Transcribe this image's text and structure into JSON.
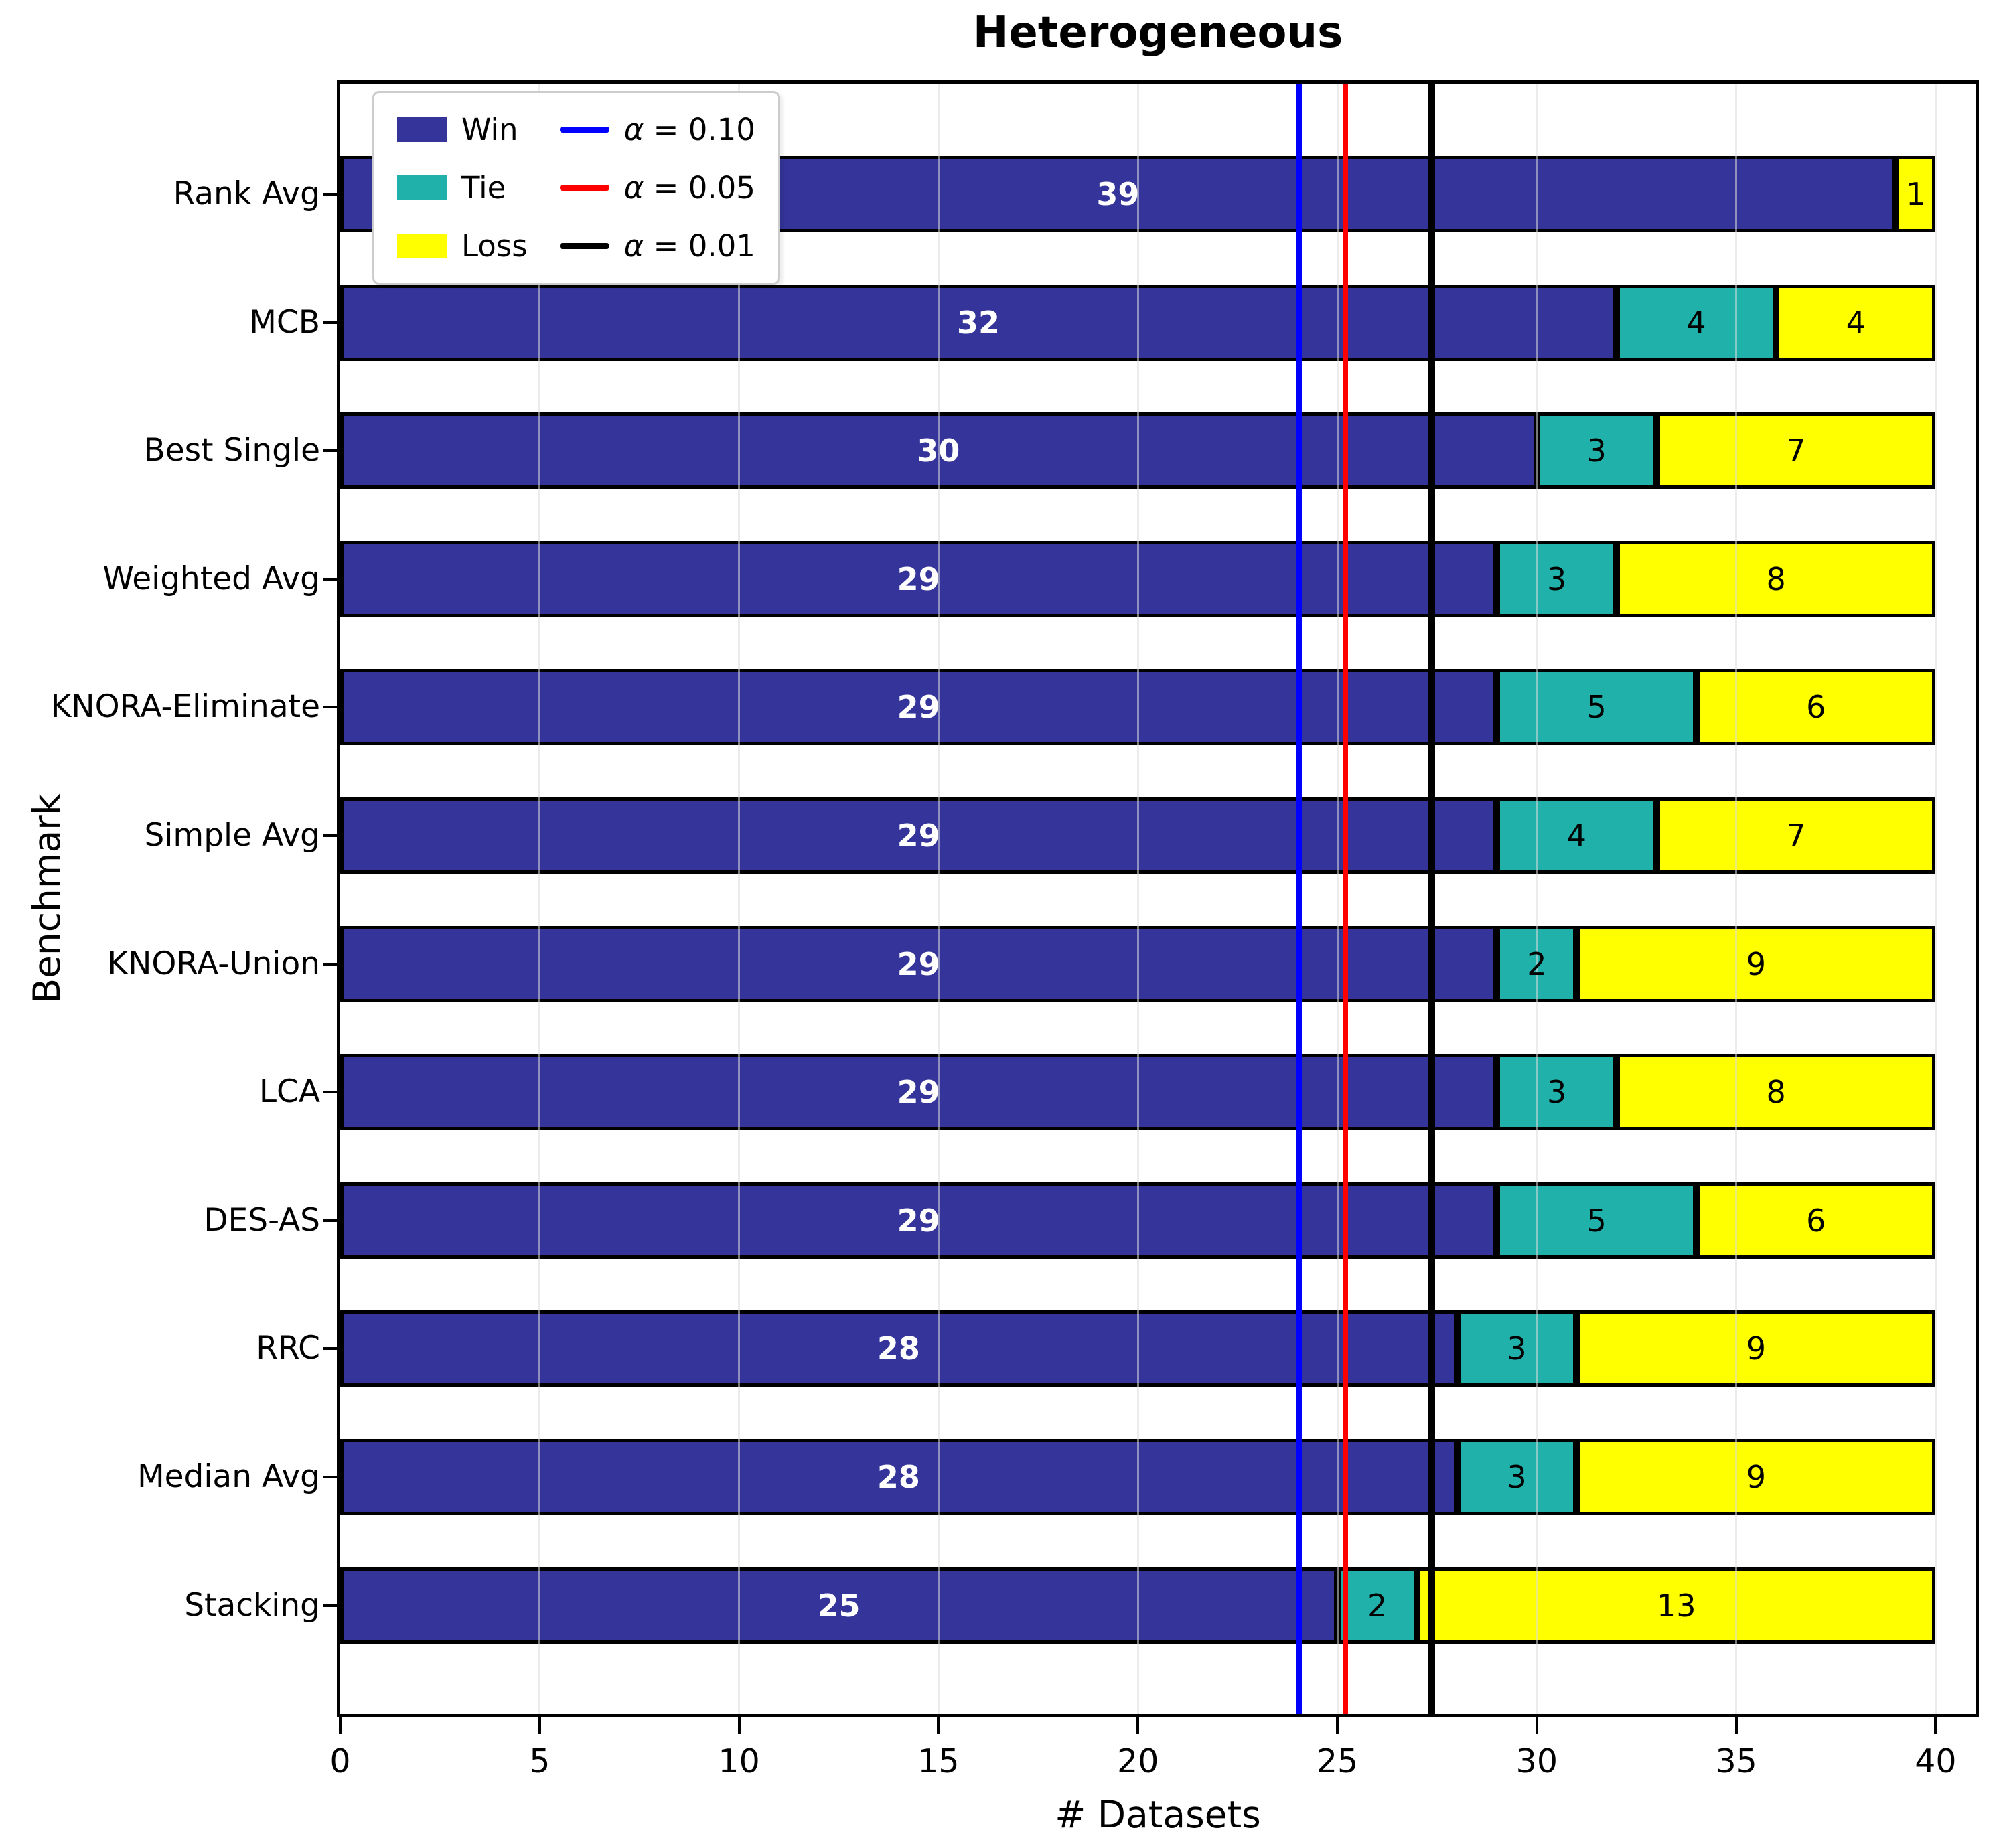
{
  "chart_data": {
    "type": "bar",
    "orientation": "horizontal",
    "stacked": true,
    "title": "Heterogeneous",
    "xlabel": "# Datasets",
    "ylabel": "Benchmark",
    "xlim": [
      0,
      41
    ],
    "x_ticks": [
      0,
      5,
      10,
      15,
      20,
      25,
      30,
      35,
      40
    ],
    "grid": true,
    "legend_position": "upper left",
    "categories": [
      "Rank Avg",
      "MCB",
      "Best Single",
      "Weighted Avg",
      "KNORA-Eliminate",
      "Simple Avg",
      "KNORA-Union",
      "LCA",
      "DES-AS",
      "RRC",
      "Median Avg",
      "Stacking"
    ],
    "series": [
      {
        "name": "Win",
        "color": "#34349A",
        "values": [
          39,
          32,
          30,
          29,
          29,
          29,
          29,
          29,
          29,
          28,
          28,
          25
        ]
      },
      {
        "name": "Tie",
        "color": "#20B2AA",
        "values": [
          0,
          4,
          3,
          3,
          5,
          4,
          2,
          3,
          5,
          3,
          3,
          2
        ]
      },
      {
        "name": "Loss",
        "color": "#FFFF00",
        "values": [
          1,
          4,
          7,
          8,
          6,
          7,
          9,
          8,
          6,
          9,
          9,
          13
        ]
      }
    ],
    "vlines": [
      {
        "label": "α = 0.10",
        "x": 24.05,
        "color": "#0000FF",
        "width": 8
      },
      {
        "label": "α = 0.05",
        "x": 25.2,
        "color": "#FF0000",
        "width": 8
      },
      {
        "label": "α = 0.01",
        "x": 27.36,
        "color": "#000000",
        "width": 10
      }
    ]
  }
}
